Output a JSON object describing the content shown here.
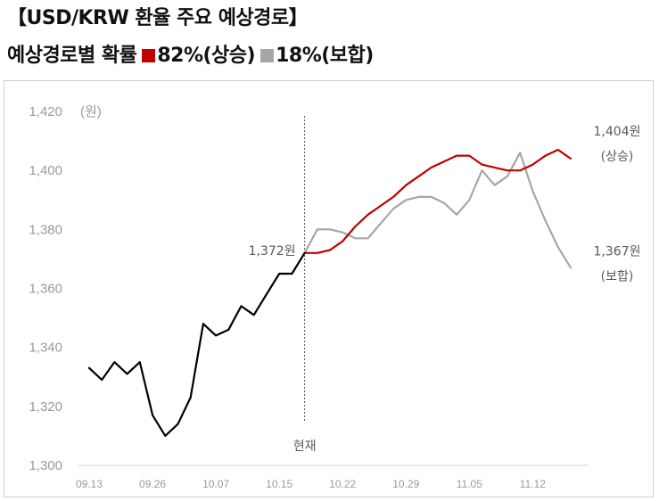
{
  "title": "【USD/KRW 환율 주요 예상경로】",
  "subtitle": "예상경로별 확률",
  "legend": [
    {
      "label": "82%(상승)",
      "color": "#c00000"
    },
    {
      "label": "18%(보합)",
      "color": "#a6a6a6"
    }
  ],
  "chart_data": {
    "type": "line",
    "unit_label": "(원)",
    "ylim": [
      1300,
      1420
    ],
    "yticks": [
      "1,300",
      "1,320",
      "1,340",
      "1,360",
      "1,380",
      "1,400",
      "1,420"
    ],
    "xticks": [
      "09.13",
      "09.26",
      "10.07",
      "10.15",
      "10.22",
      "10.29",
      "11.05",
      "11.12"
    ],
    "xtick_index": [
      0,
      5,
      10,
      15,
      20,
      25,
      30,
      35
    ],
    "n_points": 39,
    "now_index": 17,
    "now_label": "현재",
    "series": [
      {
        "name": "",
        "color": "#000000",
        "start_index": 0,
        "values": [
          1333,
          1329,
          1335,
          1331,
          1335,
          1317,
          1310,
          1314,
          1323,
          1348,
          1344,
          1346,
          1354,
          1351,
          1358,
          1365,
          1365,
          1372
        ]
      },
      {
        "name": "82%(상승)",
        "color": "#c00000",
        "start_index": 17,
        "values": [
          1372,
          1372,
          1373,
          1376,
          1381,
          1385,
          1388,
          1391,
          1395,
          1398,
          1401,
          1403,
          1405,
          1405,
          1402,
          1401,
          1400,
          1400,
          1402,
          1405,
          1407,
          1404
        ]
      },
      {
        "name": "18%(보합)",
        "color": "#a6a6a6",
        "start_index": 17,
        "values": [
          1372,
          1380,
          1380,
          1379,
          1377,
          1377,
          1382,
          1387,
          1390,
          1391,
          1391,
          1389,
          1385,
          1390,
          1400,
          1395,
          1398,
          1406,
          1393,
          1383,
          1374,
          1367
        ]
      }
    ],
    "annotations": {
      "current": "1,372원",
      "up_value": "1,404원",
      "up_label": "(상승)",
      "flat_value": "1,367원",
      "flat_label": "(보합)"
    }
  }
}
